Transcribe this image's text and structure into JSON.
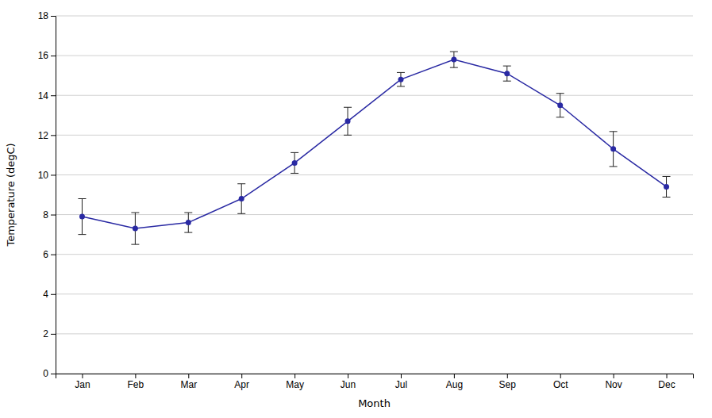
{
  "chart_data": {
    "type": "line",
    "xlabel": "Month",
    "ylabel": "Temperature (degC)",
    "categories": [
      "Jan",
      "Feb",
      "Mar",
      "Apr",
      "May",
      "Jun",
      "Jul",
      "Aug",
      "Sep",
      "Oct",
      "Nov",
      "Dec"
    ],
    "values": [
      7.9,
      7.3,
      7.6,
      8.8,
      10.6,
      12.7,
      14.8,
      15.8,
      15.1,
      13.5,
      11.3,
      9.4
    ],
    "errors": [
      0.9,
      0.8,
      0.5,
      0.75,
      0.52,
      0.7,
      0.35,
      0.4,
      0.38,
      0.6,
      0.88,
      0.52
    ],
    "color": "#2929a3",
    "marker": "circle",
    "ylim": [
      0,
      18
    ],
    "yticks": [
      0,
      2,
      4,
      6,
      8,
      10,
      12,
      14,
      16,
      18
    ],
    "grid": true
  }
}
